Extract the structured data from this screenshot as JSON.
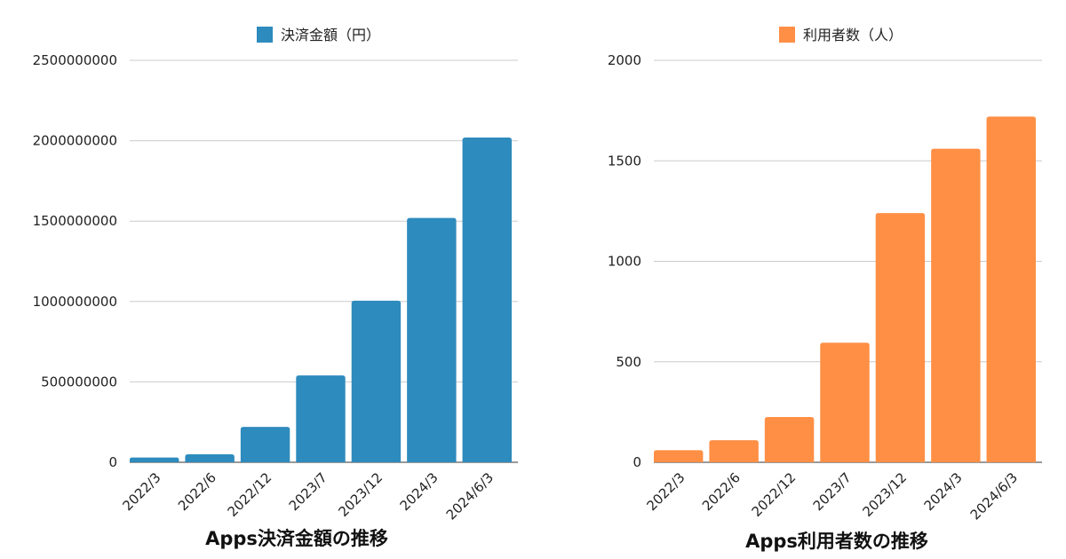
{
  "chart_data": [
    {
      "type": "bar",
      "title": "Apps決済金額の推移",
      "categories": [
        "2022/3",
        "2022/6",
        "2022/12",
        "2023/7",
        "2023/12",
        "2024/3",
        "2024/6/3"
      ],
      "series": [
        {
          "name": "決済金額（円）",
          "color": "#2e8bbd",
          "values": [
            30000000,
            50000000,
            220000000,
            540000000,
            1005000000,
            1520000000,
            2020000000
          ]
        }
      ],
      "ylim": [
        0,
        2500000000
      ],
      "yticks": [
        "0",
        "500000000",
        "1000000000",
        "1500000000",
        "2000000000",
        "2500000000"
      ],
      "legend": "top",
      "grid": true
    },
    {
      "type": "bar",
      "title": "Apps利用者数の推移",
      "categories": [
        "2022/3",
        "2022/6",
        "2022/12",
        "2023/7",
        "2023/12",
        "2024/3",
        "2024/6/3"
      ],
      "series": [
        {
          "name": "利用者数（人）",
          "color": "#ff8f45",
          "values": [
            60,
            110,
            225,
            595,
            1240,
            1560,
            1720
          ]
        }
      ],
      "ylim": [
        0,
        2000
      ],
      "yticks": [
        "0",
        "500",
        "1000",
        "1500",
        "2000"
      ],
      "legend": "top",
      "grid": true
    }
  ]
}
